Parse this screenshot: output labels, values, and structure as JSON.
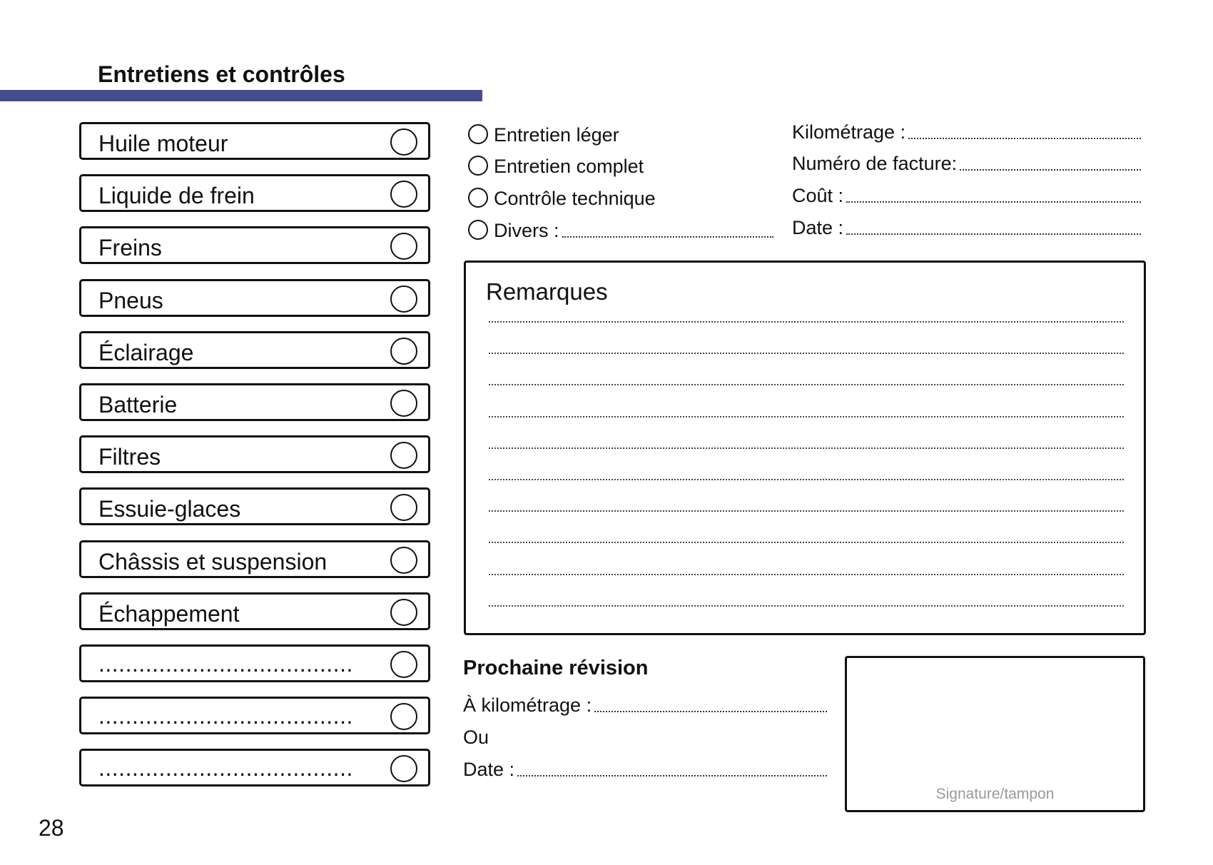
{
  "header": {
    "title": "Entretiens et contrôles",
    "accent_color": "#454d8c"
  },
  "checklist": [
    {
      "label": "Huile moteur"
    },
    {
      "label": "Liquide de frein"
    },
    {
      "label": "Freins"
    },
    {
      "label": "Pneus"
    },
    {
      "label": "Éclairage"
    },
    {
      "label": "Batterie"
    },
    {
      "label": "Filtres"
    },
    {
      "label": "Essuie-glaces"
    },
    {
      "label": "Châssis et suspension"
    },
    {
      "label": "Échappement"
    },
    {
      "label": "......................................"
    },
    {
      "label": "......................................"
    },
    {
      "label": "......................................"
    }
  ],
  "service_types": [
    {
      "label": "Entretien léger"
    },
    {
      "label": "Entretien complet"
    },
    {
      "label": "Contrôle technique"
    },
    {
      "label": "Divers :"
    }
  ],
  "details": [
    {
      "label": "Kilométrage :"
    },
    {
      "label": "Numéro de facture:"
    },
    {
      "label": "Coût :"
    },
    {
      "label": "Date :"
    }
  ],
  "remarks": {
    "title": "Remarques"
  },
  "next_service": {
    "title": "Prochaine révision",
    "mileage_label": "À kilométrage :",
    "or_label": "Ou",
    "date_label": "Date :"
  },
  "signature": {
    "label": "Signature/tampon"
  },
  "page_number": "28"
}
